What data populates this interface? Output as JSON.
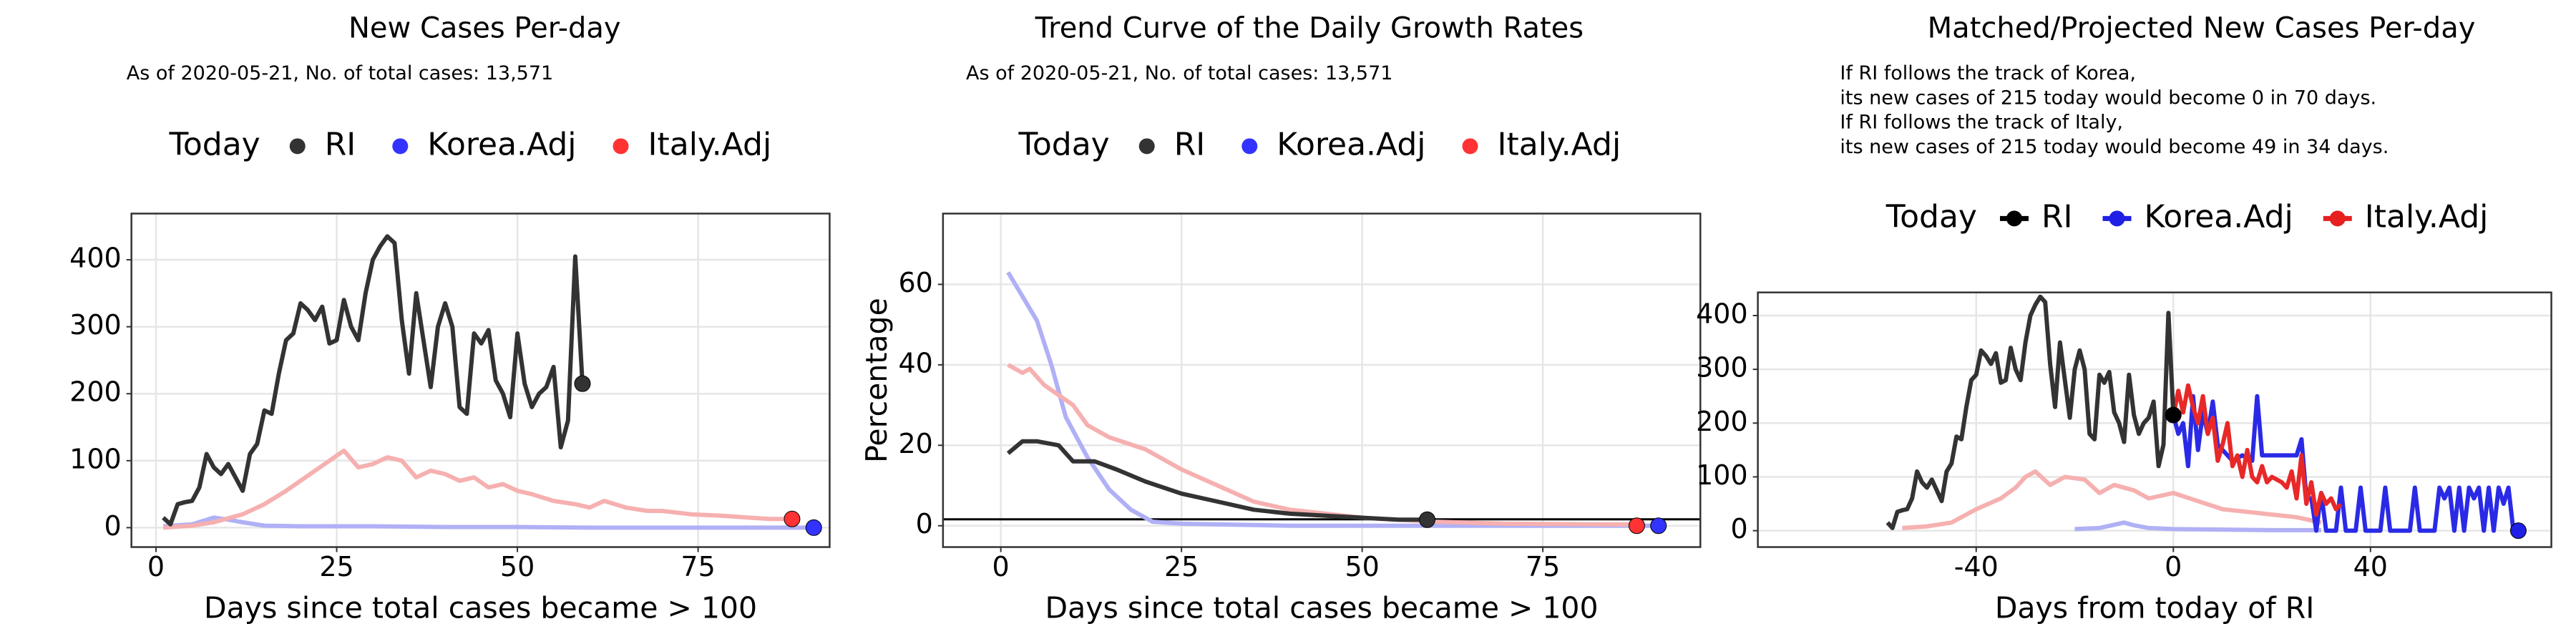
{
  "chart_data": [
    {
      "type": "line",
      "title": "New Cases Per-day",
      "subtitle": "As of 2020-05-21, No. of total cases: 13,571",
      "x_label": "Days since total cases became > 100",
      "legend_title": "Today",
      "grid": true,
      "xlim": [
        -3.4,
        93.2
      ],
      "ylim": [
        -29,
        469
      ],
      "xticks": [
        0,
        25,
        50,
        75
      ],
      "yticks": [
        0,
        100,
        200,
        300,
        400
      ],
      "series": [
        {
          "name": "RI",
          "color": "#333333",
          "line_color": "#333333",
          "x": [
            1,
            2,
            3,
            4,
            5,
            6,
            7,
            8,
            9,
            10,
            11,
            12,
            13,
            14,
            15,
            16,
            17,
            18,
            19,
            20,
            21,
            22,
            23,
            24,
            25,
            26,
            27,
            28,
            29,
            30,
            31,
            32,
            33,
            34,
            35,
            36,
            37,
            38,
            39,
            40,
            41,
            42,
            43,
            44,
            45,
            46,
            47,
            48,
            49,
            50,
            51,
            52,
            53,
            54,
            55,
            56,
            57,
            58,
            59
          ],
          "values": [
            15,
            5,
            35,
            38,
            40,
            60,
            110,
            90,
            80,
            95,
            75,
            55,
            110,
            125,
            175,
            170,
            230,
            280,
            290,
            335,
            325,
            310,
            330,
            275,
            280,
            340,
            300,
            280,
            350,
            400,
            420,
            435,
            425,
            310,
            230,
            350,
            280,
            210,
            300,
            335,
            300,
            180,
            170,
            290,
            275,
            295,
            220,
            200,
            165,
            290,
            215,
            180,
            200,
            210,
            240,
            120,
            160,
            405,
            215
          ],
          "today": {
            "x": 59,
            "value": 215
          }
        },
        {
          "name": "Korea.Adj",
          "color": "#3333ff",
          "line_color": "#b0b0f6",
          "x": [
            1,
            5,
            8,
            10,
            12,
            15,
            20,
            30,
            40,
            50,
            60,
            70,
            80,
            91
          ],
          "values": [
            2,
            5,
            15,
            12,
            8,
            3,
            2,
            2,
            1,
            1,
            0,
            0,
            0,
            0
          ],
          "today": {
            "x": 91,
            "value": 0
          }
        },
        {
          "name": "Italy.Adj",
          "color": "#ff3333",
          "line_color": "#f6b0b0",
          "x": [
            1,
            5,
            8,
            12,
            15,
            18,
            20,
            22,
            24,
            26,
            28,
            30,
            32,
            34,
            36,
            38,
            40,
            42,
            44,
            46,
            48,
            50,
            52,
            55,
            58,
            60,
            62,
            65,
            68,
            70,
            74,
            78,
            82,
            85,
            88
          ],
          "values": [
            0,
            3,
            8,
            20,
            35,
            55,
            70,
            85,
            100,
            115,
            90,
            95,
            105,
            100,
            75,
            85,
            80,
            70,
            75,
            60,
            65,
            55,
            50,
            40,
            35,
            30,
            40,
            30,
            25,
            25,
            20,
            18,
            15,
            13,
            13
          ],
          "today": {
            "x": 88,
            "value": 13
          }
        }
      ]
    },
    {
      "type": "line",
      "title": "Trend Curve of the Daily Growth Rates",
      "subtitle": "As of 2020-05-21, No. of total cases: 13,571",
      "x_label": "Days since total cases became > 100",
      "y_label": "Percentage",
      "legend_title": "Today",
      "grid": true,
      "reference_line": 1.6,
      "xlim": [
        -8,
        96.8
      ],
      "ylim": [
        -5.3,
        77.6
      ],
      "xticks": [
        0,
        25,
        50,
        75
      ],
      "yticks": [
        0,
        20,
        40,
        60
      ],
      "series": [
        {
          "name": "RI",
          "color": "#333333",
          "line_color": "#333333",
          "x": [
            1,
            3,
            5,
            8,
            10,
            13,
            16,
            20,
            25,
            30,
            35,
            40,
            45,
            50,
            55,
            59
          ],
          "values": [
            18,
            21,
            21,
            20,
            16,
            16,
            14,
            11,
            8,
            6,
            4,
            3,
            2.5,
            2,
            1.5,
            1.5
          ],
          "today": {
            "x": 59,
            "value": 1.5
          }
        },
        {
          "name": "Korea.Adj",
          "color": "#3333ff",
          "line_color": "#b0b0f6",
          "x": [
            1,
            3,
            5,
            7,
            9,
            12,
            15,
            18,
            21,
            25,
            40,
            60,
            80,
            91
          ],
          "values": [
            63,
            57,
            51,
            40,
            27,
            17,
            9,
            4,
            1,
            0.5,
            0,
            0,
            0,
            0
          ],
          "today": {
            "x": 91,
            "value": 0
          }
        },
        {
          "name": "Italy.Adj",
          "color": "#ff3333",
          "line_color": "#f6b0b0",
          "x": [
            1,
            3,
            4,
            6,
            10,
            12,
            15,
            20,
            25,
            30,
            35,
            40,
            45,
            50,
            60,
            70,
            88
          ],
          "values": [
            40,
            38,
            39,
            35,
            30,
            25,
            22,
            19,
            14,
            10,
            6,
            4,
            3,
            2,
            1,
            0.5,
            0.3
          ],
          "today": {
            "x": 88,
            "value": 0
          }
        }
      ]
    },
    {
      "type": "line",
      "title": "Matched/Projected New Cases Per-day",
      "subtitle": [
        "If RI follows the track of Korea,",
        "its new cases of 215 today would become 0 in 70 days.",
        "If RI follows the track of Italy,",
        "its new cases of 215 today would become 49 in 34 days."
      ],
      "x_label": "Days from today of RI",
      "legend_title": "Today",
      "grid": true,
      "xlim": [
        -84.3,
        76.7
      ],
      "ylim": [
        -30.5,
        443
      ],
      "xticks": [
        -40,
        0,
        40
      ],
      "yticks": [
        0,
        100,
        200,
        300,
        400
      ],
      "series": [
        {
          "name": "RI",
          "color": "#000000",
          "line_color": "#333333",
          "x": [
            -58,
            -57,
            -56,
            -55,
            -54,
            -53,
            -52,
            -51,
            -50,
            -49,
            -48,
            -47,
            -46,
            -45,
            -44,
            -43,
            -42,
            -41,
            -40,
            -39,
            -38,
            -37,
            -36,
            -35,
            -34,
            -33,
            -32,
            -31,
            -30,
            -29,
            -28,
            -27,
            -26,
            -25,
            -24,
            -23,
            -22,
            -21,
            -20,
            -19,
            -18,
            -17,
            -16,
            -15,
            -14,
            -13,
            -12,
            -11,
            -10,
            -9,
            -8,
            -7,
            -6,
            -5,
            -4,
            -3,
            -2,
            -1,
            0
          ],
          "values": [
            15,
            5,
            35,
            38,
            40,
            60,
            110,
            90,
            80,
            95,
            75,
            55,
            110,
            125,
            175,
            170,
            230,
            280,
            290,
            335,
            325,
            310,
            330,
            275,
            280,
            340,
            300,
            280,
            350,
            400,
            420,
            435,
            425,
            310,
            230,
            350,
            280,
            210,
            300,
            335,
            300,
            180,
            170,
            290,
            275,
            295,
            220,
            200,
            165,
            290,
            215,
            180,
            200,
            210,
            240,
            120,
            160,
            405,
            215
          ],
          "today": {
            "x": 0,
            "value": 215
          }
        },
        {
          "name": "Korea.Adj",
          "color": "#1f1fe6",
          "line_color": "#b0b0f6",
          "x": [
            -20,
            -15,
            -10,
            -8,
            -5,
            0,
            10,
            20,
            30
          ],
          "values": [
            3,
            5,
            15,
            10,
            5,
            3,
            2,
            1,
            1
          ],
          "today": {
            "x": 70,
            "value": 0
          },
          "projection": {
            "color": "#2a2ae6",
            "x": [
              0,
              1,
              2,
              3,
              4,
              5,
              6,
              7,
              8,
              9,
              10,
              12,
              14,
              16,
              17,
              18,
              20,
              22,
              25,
              26,
              27,
              28,
              29,
              30,
              31,
              33,
              34,
              35,
              37,
              38,
              39,
              42,
              43,
              44,
              48,
              49,
              50,
              53,
              54,
              55,
              56,
              57,
              58,
              59,
              60,
              61,
              62,
              63,
              64,
              65,
              66,
              67,
              68,
              69,
              70
            ],
            "values": [
              215,
              180,
              200,
              120,
              250,
              150,
              220,
              180,
              240,
              160,
              150,
              130,
              140,
              130,
              250,
              140,
              140,
              140,
              140,
              170,
              60,
              60,
              0,
              70,
              0,
              0,
              80,
              0,
              0,
              80,
              0,
              0,
              80,
              0,
              0,
              80,
              0,
              0,
              80,
              60,
              80,
              0,
              80,
              0,
              80,
              60,
              80,
              0,
              80,
              0,
              80,
              50,
              80,
              0,
              0
            ]
          }
        },
        {
          "name": "Italy.Adj",
          "color": "#e61f1f",
          "line_color": "#f6b0b0",
          "x": [
            -55,
            -50,
            -45,
            -40,
            -35,
            -32,
            -30,
            -28,
            -25,
            -22,
            -18,
            -15,
            -12,
            -8,
            -5,
            0,
            5,
            10,
            15,
            20,
            25,
            30
          ],
          "values": [
            5,
            8,
            15,
            40,
            60,
            80,
            100,
            110,
            85,
            100,
            95,
            70,
            85,
            75,
            60,
            70,
            55,
            40,
            35,
            30,
            25,
            15
          ],
          "projection": {
            "color": "#e82828",
            "x": [
              0,
              1,
              2,
              3,
              4,
              5,
              6,
              7,
              8,
              9,
              10,
              11,
              12,
              13,
              14,
              15,
              16,
              17,
              18,
              19,
              20,
              22,
              23,
              24,
              25,
              26,
              27,
              28,
              29,
              30,
              31,
              32,
              33,
              34
            ],
            "values": [
              215,
              260,
              220,
              270,
              230,
              200,
              250,
              180,
              210,
              130,
              160,
              200,
              120,
              140,
              100,
              150,
              100,
              90,
              120,
              90,
              100,
              90,
              80,
              110,
              60,
              140,
              50,
              90,
              30,
              70,
              50,
              60,
              40,
              49
            ]
          }
        }
      ]
    }
  ]
}
